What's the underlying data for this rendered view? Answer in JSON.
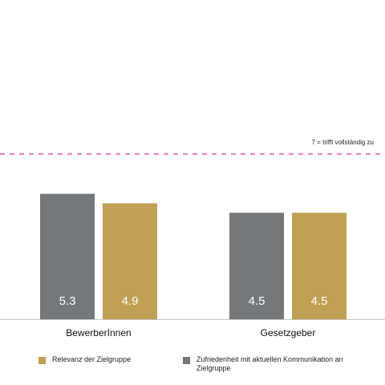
{
  "chart_data": {
    "type": "bar",
    "categories": [
      "BewerberInnen",
      "Gesetzgeber"
    ],
    "series": [
      {
        "name": "Zufriedenheit mit aktuellen Kommunikation an Zielgruppe",
        "color": "#75787b",
        "values": [
          5.3,
          4.5
        ]
      },
      {
        "name": "Relevanz der Zielgruppe",
        "color": "#bfa054",
        "values": [
          4.9,
          4.5
        ]
      }
    ],
    "ylim": [
      0,
      7
    ],
    "reference_line": {
      "value": 7,
      "label": "7 = trifft vollständig zu",
      "color": "#e6007e"
    },
    "grid": false,
    "legend_placement": "bottom"
  }
}
